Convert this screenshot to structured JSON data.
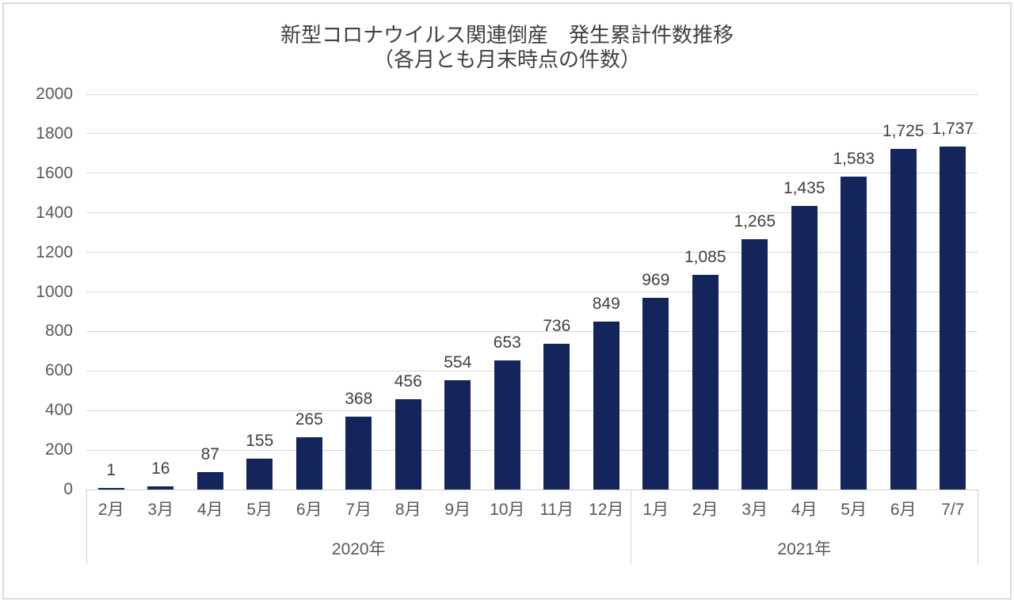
{
  "window": {
    "background": "#ffffff",
    "border_color": "#d9dce0"
  },
  "chart_data": {
    "type": "bar",
    "title": "新型コロナウイルス関連倒産　発生累計件数推移",
    "subtitle": "（各月とも月末時点の件数）",
    "categories": [
      "2月",
      "3月",
      "4月",
      "5月",
      "6月",
      "7月",
      "8月",
      "9月",
      "10月",
      "11月",
      "12月",
      "1月",
      "2月",
      "3月",
      "4月",
      "5月",
      "6月",
      "7/7"
    ],
    "values": [
      1,
      16,
      87,
      155,
      265,
      368,
      456,
      554,
      653,
      736,
      849,
      969,
      1085,
      1265,
      1435,
      1583,
      1725,
      1737
    ],
    "value_labels": [
      "1",
      "16",
      "87",
      "155",
      "265",
      "368",
      "456",
      "554",
      "653",
      "736",
      "849",
      "969",
      "1,085",
      "1,265",
      "1,435",
      "1,583",
      "1,725",
      "1,737"
    ],
    "groups": [
      {
        "label": "2020年",
        "span": 11
      },
      {
        "label": "2021年",
        "span": 7
      }
    ],
    "xlabel": "",
    "ylabel": "",
    "ylim": [
      0,
      2000
    ],
    "yticks": [
      0,
      200,
      400,
      600,
      800,
      1000,
      1200,
      1400,
      1600,
      1800,
      2000
    ],
    "grid": true,
    "legend": "none",
    "colors": {
      "bar": "#13255a",
      "gridline": "#d9d9d9",
      "axis_line": "#cfd2d6",
      "tick_label": "#595959",
      "value_label": "#404040",
      "title": "#404040"
    }
  }
}
